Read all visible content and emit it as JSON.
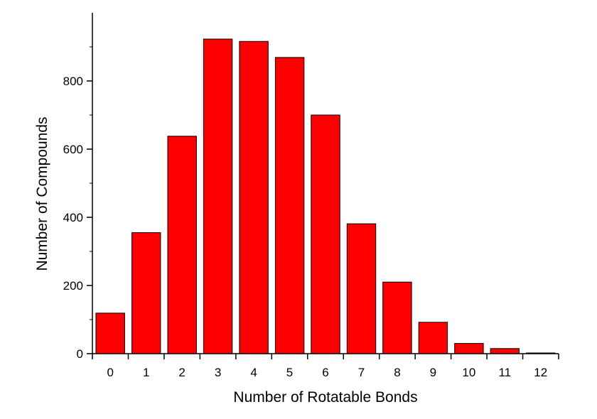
{
  "chart_data": {
    "type": "bar",
    "title": "",
    "xlabel": "Number of Rotatable Bonds",
    "ylabel": "Number of Compounds",
    "categories": [
      "0",
      "1",
      "2",
      "3",
      "4",
      "5",
      "6",
      "7",
      "8",
      "9",
      "10",
      "11",
      "12"
    ],
    "values": [
      119,
      355,
      638,
      923,
      916,
      869,
      700,
      381,
      210,
      92,
      30,
      15,
      2
    ],
    "ylim": [
      0,
      1000
    ],
    "yticks": [
      0,
      200,
      400,
      600,
      800
    ],
    "grid": false,
    "legend": "none",
    "bar_color": "#ff0000",
    "bar_edge_color": "#000000"
  }
}
